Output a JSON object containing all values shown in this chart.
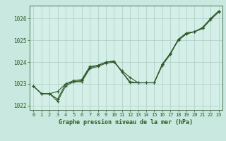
{
  "xlabel": "Graphe pression niveau de la mer (hPa)",
  "bg_color": "#c8e8e0",
  "plot_bg_color": "#d4eee8",
  "grid_color": "#aaccc4",
  "line_color": "#2d5a27",
  "spine_color": "#4a7a44",
  "ylim": [
    1021.8,
    1026.6
  ],
  "xlim": [
    -0.5,
    23.5
  ],
  "yticks": [
    1022,
    1023,
    1024,
    1025,
    1026
  ],
  "xticks": [
    0,
    1,
    2,
    3,
    4,
    5,
    6,
    7,
    8,
    9,
    10,
    11,
    12,
    13,
    14,
    15,
    16,
    17,
    18,
    19,
    20,
    21,
    22,
    23
  ],
  "series": [
    [
      1022.9,
      1022.55,
      1022.55,
      1022.2,
      1022.9,
      1023.1,
      1023.1,
      1023.7,
      1023.8,
      1023.95,
      1024.0,
      1023.6,
      1023.3,
      1023.05,
      1023.05,
      1023.05,
      1023.9,
      1024.4,
      1025.0,
      1025.3,
      1025.4,
      1025.55,
      1025.95,
      1026.3
    ],
    [
      1022.9,
      1022.55,
      1022.55,
      1022.3,
      1023.0,
      1023.1,
      1023.15,
      1023.75,
      1023.85,
      1024.0,
      1024.05,
      1023.55,
      1023.1,
      1023.05,
      1023.05,
      1023.05,
      1023.85,
      1024.35,
      1025.05,
      1025.3,
      1025.4,
      1025.55,
      1026.0,
      1026.35
    ],
    [
      1022.9,
      1022.55,
      1022.55,
      1022.65,
      1023.0,
      1023.15,
      1023.2,
      1023.8,
      1023.85,
      1024.0,
      1024.05,
      1023.55,
      1023.05,
      1023.05,
      1023.05,
      1023.05,
      1023.9,
      1024.4,
      1025.05,
      1025.35,
      1025.4,
      1025.6,
      1026.0,
      1026.35
    ]
  ]
}
